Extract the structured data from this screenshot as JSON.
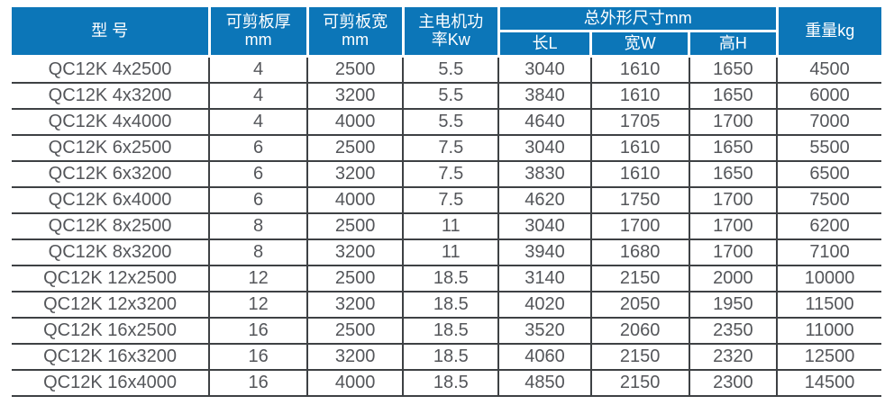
{
  "table": {
    "title_semantics": "QC12K shearing machine specification table",
    "colors": {
      "header_bg": "#0c76b8",
      "header_text": "#ffffff",
      "body_text": "#54565a",
      "grid_line": "#3e4144"
    },
    "headers": {
      "model": "型 号",
      "thickness_line1": "可剪板厚",
      "thickness_line2": "mm",
      "width_line1": "可剪板宽",
      "width_line2": "mm",
      "power_line1": "主电机功",
      "power_line2": "率Kw",
      "dimensions_group": "总外形尺寸mm",
      "dim_length": "长L",
      "dim_width": "宽W",
      "dim_height": "高H",
      "weight": "重量kg"
    },
    "rows": [
      [
        "QC12K 4x2500",
        "4",
        "2500",
        "5.5",
        "3040",
        "1610",
        "1650",
        "4500"
      ],
      [
        "QC12K 4x3200",
        "4",
        "3200",
        "5.5",
        "3840",
        "1610",
        "1650",
        "6000"
      ],
      [
        "QC12K 4x4000",
        "4",
        "4000",
        "5.5",
        "4640",
        "1705",
        "1700",
        "7000"
      ],
      [
        "QC12K 6x2500",
        "6",
        "2500",
        "7.5",
        "3040",
        "1610",
        "1650",
        "5500"
      ],
      [
        "QC12K 6x3200",
        "6",
        "3200",
        "7.5",
        "3830",
        "1610",
        "1650",
        "6500"
      ],
      [
        "QC12K 6x4000",
        "6",
        "4000",
        "7.5",
        "4620",
        "1750",
        "1700",
        "7500"
      ],
      [
        "QC12K 8x2500",
        "8",
        "2500",
        "11",
        "3040",
        "1700",
        "1700",
        "6200"
      ],
      [
        "QC12K 8x3200",
        "8",
        "3200",
        "11",
        "3940",
        "1680",
        "1700",
        "7100"
      ],
      [
        "QC12K 12x2500",
        "12",
        "2500",
        "18.5",
        "3140",
        "2150",
        "2000",
        "10000"
      ],
      [
        "QC12K 12x3200",
        "12",
        "3200",
        "18.5",
        "4020",
        "2050",
        "1950",
        "11500"
      ],
      [
        "QC12K 16x2500",
        "16",
        "2500",
        "18.5",
        "3520",
        "2060",
        "2350",
        "11000"
      ],
      [
        "QC12K 16x3200",
        "16",
        "3200",
        "18.5",
        "4060",
        "2150",
        "2320",
        "12500"
      ],
      [
        "QC12K 16x4000",
        "16",
        "4000",
        "18.5",
        "4850",
        "2150",
        "2300",
        "14500"
      ]
    ]
  }
}
